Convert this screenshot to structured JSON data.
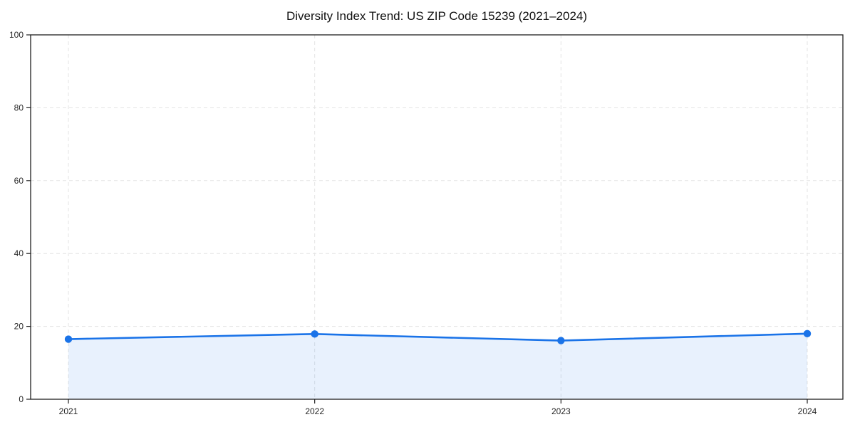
{
  "chart_data": {
    "type": "area",
    "title": "Diversity Index Trend: US ZIP Code 15239 (2021–2024)",
    "categories": [
      "2021",
      "2022",
      "2023",
      "2024"
    ],
    "x": [
      2021,
      2022,
      2023,
      2024
    ],
    "series": [
      {
        "name": "Diversity Index",
        "values": [
          16.5,
          17.9,
          16.1,
          18.0
        ]
      }
    ],
    "xlabel": "",
    "ylabel": "",
    "ylim": [
      0,
      100
    ],
    "yticks": [
      0,
      20,
      40,
      60,
      80,
      100
    ],
    "grid": true,
    "grid_style": "dashed",
    "legend_position": "none",
    "colors": {
      "line": "#1a73e8",
      "marker": "#1a73e8",
      "area_fill": "rgba(26,115,232,0.10)",
      "gridline": "#e3e3e3",
      "spine": "#1f1f1f",
      "tick_label": "#262626",
      "title": "#111111",
      "background": "#ffffff"
    }
  }
}
